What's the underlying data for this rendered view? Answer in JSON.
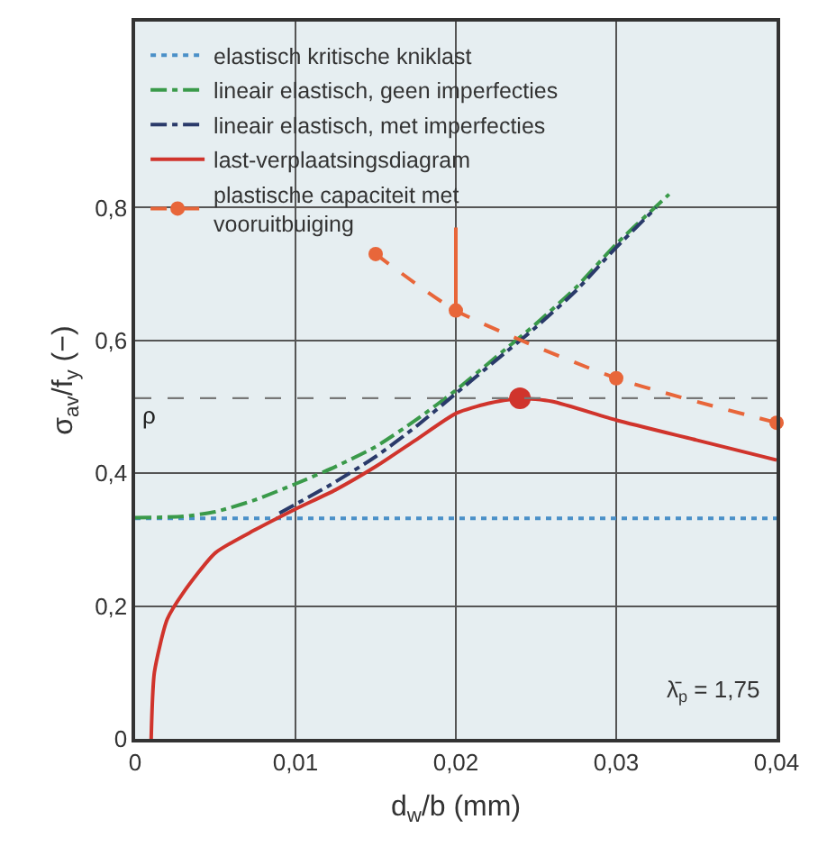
{
  "chart_data": {
    "type": "line",
    "xlabel": "d$_{w}$/b (mm)",
    "ylabel": "σ$_{av}$/f$_{y}$ (−)",
    "xlim": [
      0,
      0.04
    ],
    "ylim": [
      0,
      1.08
    ],
    "xticks": [
      0,
      {
        "value": 0.01,
        "label": "0,01"
      },
      {
        "value": 0.02,
        "label": "0,02"
      },
      {
        "value": 0.03,
        "label": "0,03"
      },
      {
        "value": 0.04,
        "label": "0,04"
      }
    ],
    "yticks": [
      0,
      {
        "value": 0.2,
        "label": "0,2"
      },
      {
        "value": 0.4,
        "label": "0,4"
      },
      {
        "value": 0.6,
        "label": "0,6"
      },
      {
        "value": 0.8,
        "label": "0,8"
      }
    ],
    "grid": true,
    "legend": "top left",
    "series": [
      {
        "name": "elastisch kritische kniklast",
        "color": "#4a90c8",
        "line_style": "dotted",
        "marker": "none",
        "x": [
          0,
          0.04
        ],
        "values": [
          0.332,
          0.332
        ]
      },
      {
        "name": "lineair elastisch, geen imperfecties",
        "color": "#3a9a4a",
        "line_style": "dashdot",
        "marker": "none",
        "x": [
          0,
          0.003,
          0.005,
          0.0075,
          0.01,
          0.0125,
          0.015,
          0.0175,
          0.02,
          0.0225,
          0.025,
          0.0275,
          0.03,
          0.0333
        ],
        "values": [
          0.333,
          0.335,
          0.342,
          0.36,
          0.384,
          0.41,
          0.44,
          0.48,
          0.525,
          0.575,
          0.625,
          0.68,
          0.745,
          0.82
        ]
      },
      {
        "name": "lineair elastisch, met imperfecties",
        "color": "#2a3a6a",
        "line_style": "dashdot",
        "marker": "none",
        "x": [
          0.009,
          0.012,
          0.015,
          0.0175,
          0.02,
          0.0225,
          0.025,
          0.0275,
          0.03,
          0.0325
        ],
        "values": [
          0.34,
          0.38,
          0.425,
          0.47,
          0.52,
          0.57,
          0.62,
          0.675,
          0.74,
          0.8
        ]
      },
      {
        "name": "last-verplaatsingsdiagram",
        "color": "#d0342c",
        "line_style": "solid",
        "marker": "none",
        "x": [
          0.001,
          0.0012,
          0.002,
          0.003,
          0.005,
          0.0075,
          0.01,
          0.0125,
          0.015,
          0.0175,
          0.02,
          0.022,
          0.024,
          0.026,
          0.03,
          0.035,
          0.04
        ],
        "values": [
          0,
          0.1,
          0.18,
          0.22,
          0.28,
          0.315,
          0.346,
          0.375,
          0.41,
          0.45,
          0.49,
          0.505,
          0.513,
          0.508,
          0.48,
          0.45,
          0.42
        ]
      },
      {
        "type": "scatter",
        "color": "#d0342c",
        "marker": "circle",
        "x": [
          0.024
        ],
        "values": [
          0.513
        ]
      },
      {
        "name": "plastische capaciteit met vooruitbuiging",
        "color": "#e8663a",
        "line_style": "dashed",
        "marker": "circle",
        "x": [
          0.015,
          0.02,
          0.03,
          0.04
        ],
        "values": [
          0.73,
          0.645,
          0.543,
          0.476
        ]
      },
      {
        "color": "#e8663a",
        "line_style": "solid",
        "marker": "none",
        "x": [
          0.02,
          0.02
        ],
        "values": [
          0.655,
          0.77
        ]
      }
    ],
    "ref_lines": [
      {
        "axis": "y",
        "value": 0.513,
        "label": "ρ",
        "color": "#777777",
        "line_style": "dashed"
      }
    ],
    "annotations": [
      "λ̄$_{p}$ = 1,75"
    ]
  }
}
